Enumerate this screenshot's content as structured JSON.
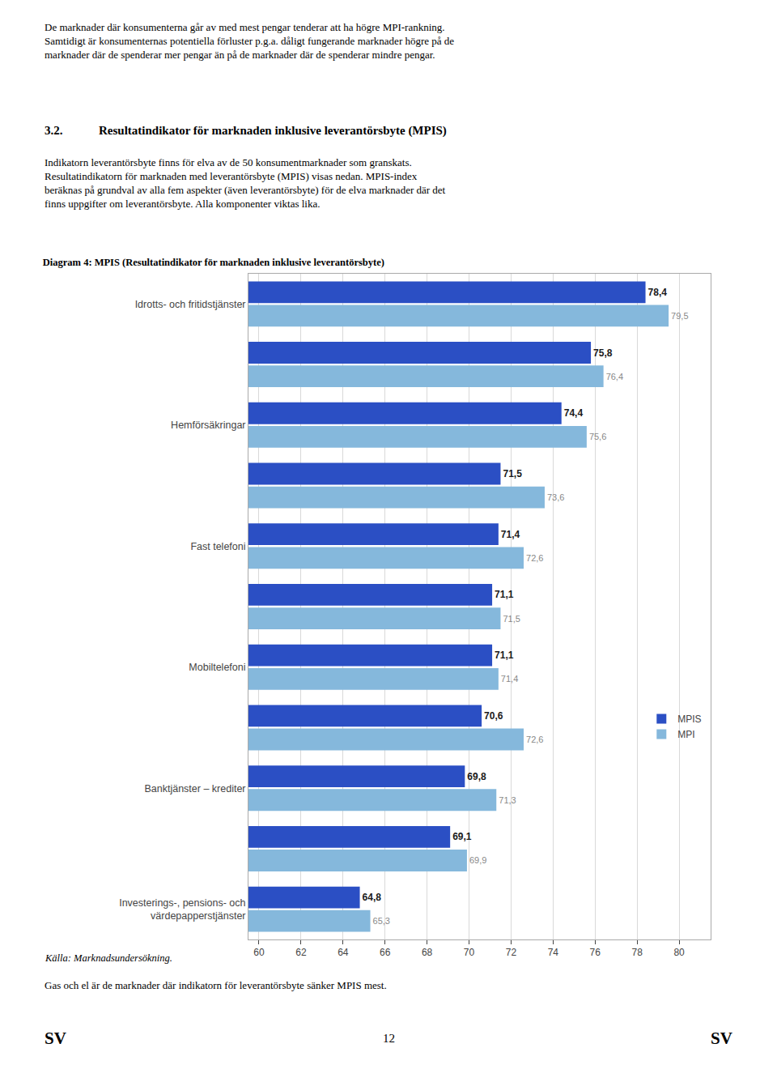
{
  "page": {
    "header": "De marknader där konsumenterna går av med mest pengar tenderar att ha högre MPI-rankning.\nSamtidigt är konsumenternas potentiella förluster p.g.a. dåligt fungerande marknader högre på de\nmarknader där de spenderar mer pengar än på de marknader där de spenderar mindre pengar.",
    "section_number": "3.2.",
    "section_title": "Resultatindikator för marknaden inklusive leverantörsbyte (MPIS)",
    "body": "Indikatorn leverantörsbyte finns för elva av de 50 konsumentmarknader som granskats.\nResultatindikatorn för marknaden med leverantörsbyte (MPIS) visas nedan. MPIS-index\nberäknas på grundval av alla fem aspekter (även leverantörsbyte) för de elva marknader där det\nfinns uppgifter om leverantörsbyte. Alla komponenter viktas lika.",
    "source": "Källa: Marknadsundersökning.",
    "conclusion": "Gas och el är de marknader där indikatorn för leverantörsbyte sänker MPIS mest.",
    "footer": [
      "SV",
      "12",
      "SV"
    ]
  },
  "chart_data": {
    "type": "bar",
    "orientation": "horizontal",
    "title": "Diagram 4: MPIS (Resultatindikator för marknaden inklusive leverantörsbyte)",
    "categories": [
      "Idrotts- och fritidstjänster",
      null,
      "Hemförsäkringar",
      null,
      "Fast telefoni",
      null,
      "Mobiltelefoni",
      null,
      "Banktjänster – krediter",
      null,
      "Investerings-, pensions- och\nvärdepapperstjänster"
    ],
    "series": [
      {
        "name": "MPIS",
        "color": "#2B4FC4",
        "values": [
          78.4,
          75.8,
          74.4,
          71.5,
          71.4,
          71.1,
          71.1,
          70.6,
          69.8,
          69.1,
          64.8
        ],
        "value_labels": [
          "78,4",
          "75,8",
          "74,4",
          "71,5",
          "71,4",
          "71,1",
          "71,1",
          "70,6",
          "69,8",
          "69,1",
          "64,8"
        ]
      },
      {
        "name": "MPI",
        "color": "#85B8DC",
        "values": [
          79.5,
          76.4,
          75.6,
          73.6,
          72.6,
          71.5,
          71.4,
          72.6,
          71.3,
          69.9,
          65.3
        ],
        "value_labels": [
          "79,5",
          "76,4",
          "75,6",
          "73,6",
          "72,6",
          "71,5",
          "71,4",
          "72,6",
          "71,3",
          "69,9",
          "65,3"
        ]
      }
    ],
    "xlim": [
      59.5,
      81.5
    ],
    "xticks": [
      60,
      62,
      64,
      66,
      68,
      70,
      72,
      74,
      76,
      78,
      80
    ],
    "grid": true,
    "legend": "right",
    "data_labels": true
  }
}
